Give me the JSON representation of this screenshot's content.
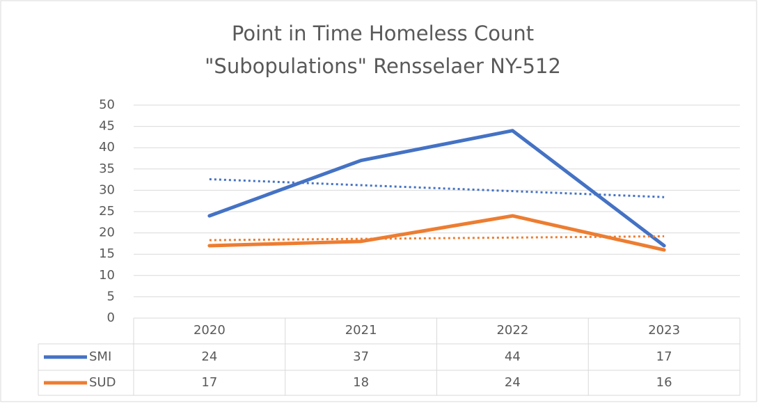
{
  "chart_data": {
    "type": "line",
    "title": [
      "Point in Time Homeless Count",
      "\"Subopulations\" Rensselaer NY-512"
    ],
    "categories": [
      "2020",
      "2021",
      "2022",
      "2023"
    ],
    "series": [
      {
        "name": "SMI",
        "color": "#4472c4",
        "values": [
          24,
          37,
          44,
          17
        ],
        "trendline": true
      },
      {
        "name": "SUD",
        "color": "#ed7d31",
        "values": [
          17,
          18,
          24,
          16
        ],
        "trendline": true
      }
    ],
    "ylim": [
      0,
      50
    ],
    "yticks": [
      0,
      5,
      10,
      15,
      20,
      25,
      30,
      35,
      40,
      45,
      50
    ],
    "grid": true,
    "data_table": true
  }
}
